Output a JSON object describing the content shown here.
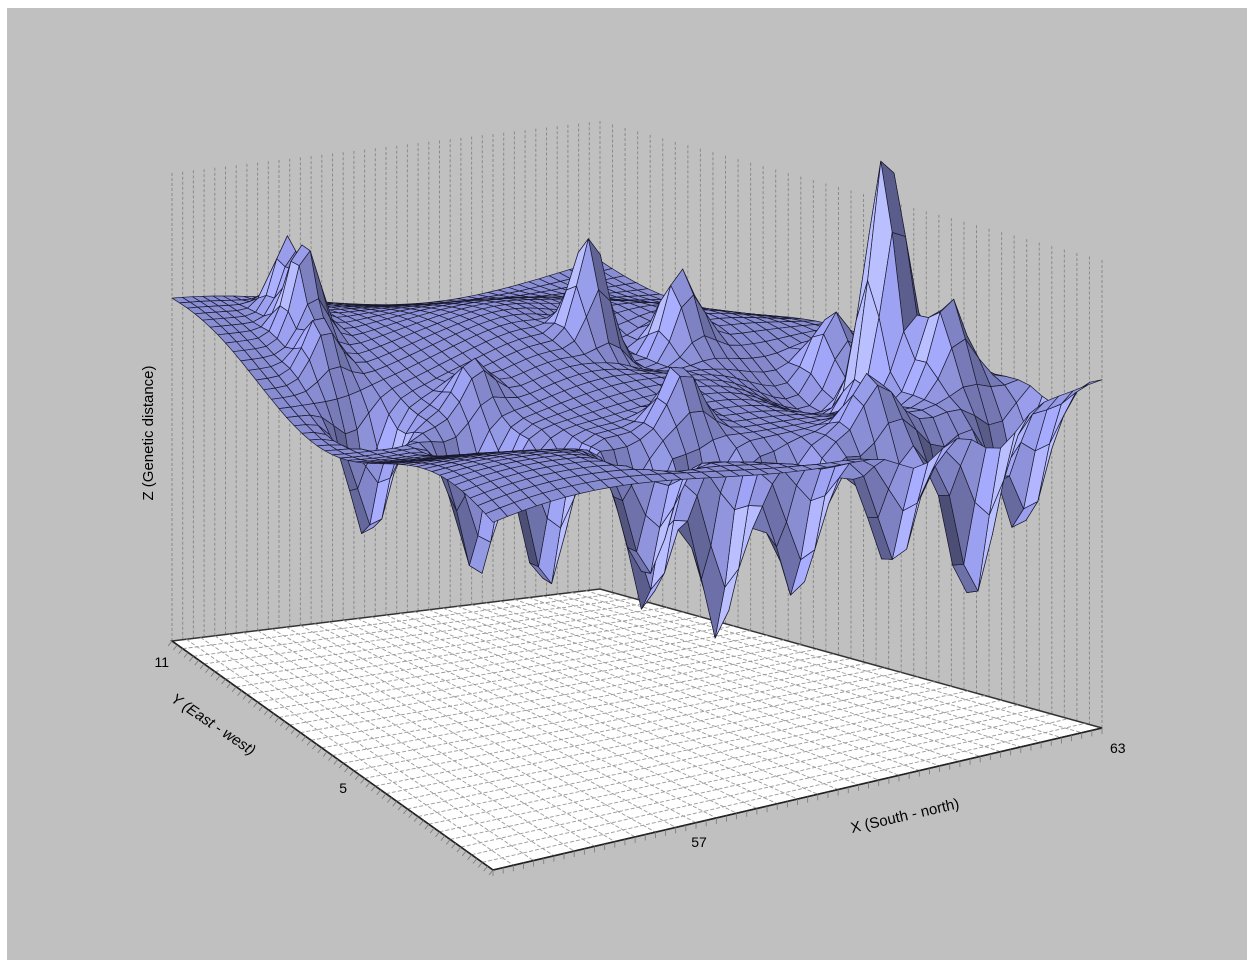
{
  "chart_data": {
    "type": "surface",
    "title": "",
    "xlabel": "X (South - north)",
    "ylabel": "Y (East - west)",
    "zlabel": "Z (Genetic distance)",
    "x_ticks": [
      "57",
      "63"
    ],
    "y_ticks": [
      "11",
      "5"
    ],
    "x_range": [
      53,
      63
    ],
    "y_range": [
      1,
      11
    ],
    "z_range": [
      0,
      1
    ],
    "base_level": 0.55,
    "grid": true,
    "surface_color": "#8a8ed4",
    "peaks": [
      {
        "x": 61.9,
        "y": 4.1,
        "z": 0.97
      },
      {
        "x": 62.2,
        "y": 3.2,
        "z": 0.71
      },
      {
        "x": 62.0,
        "y": 5.3,
        "z": 0.66
      },
      {
        "x": 60.3,
        "y": 6.7,
        "z": 0.68
      },
      {
        "x": 58.8,
        "y": 7.0,
        "z": 0.75
      },
      {
        "x": 54.6,
        "y": 9.2,
        "z": 0.71
      },
      {
        "x": 54.9,
        "y": 10.0,
        "z": 0.68
      },
      {
        "x": 54.3,
        "y": 8.3,
        "z": 0.64
      },
      {
        "x": 56.0,
        "y": 6.4,
        "z": 0.62
      },
      {
        "x": 58.1,
        "y": 4.0,
        "z": 0.66
      },
      {
        "x": 60.4,
        "y": 2.6,
        "z": 0.64
      },
      {
        "x": 57.4,
        "y": 3.0,
        "z": 0.61
      }
    ],
    "troughs": [
      {
        "x": 57.8,
        "y": 2.7,
        "z": 0.22
      },
      {
        "x": 61.3,
        "y": 1.6,
        "z": 0.23
      },
      {
        "x": 56.9,
        "y": 3.1,
        "z": 0.26
      },
      {
        "x": 55.8,
        "y": 4.2,
        "z": 0.3
      },
      {
        "x": 55.3,
        "y": 5.3,
        "z": 0.32
      },
      {
        "x": 58.8,
        "y": 2.2,
        "z": 0.3
      },
      {
        "x": 60.0,
        "y": 1.6,
        "z": 0.33
      },
      {
        "x": 54.3,
        "y": 6.9,
        "z": 0.35
      },
      {
        "x": 56.3,
        "y": 2.3,
        "z": 0.34
      },
      {
        "x": 62.4,
        "y": 1.9,
        "z": 0.31
      }
    ],
    "pits": [
      {
        "x": 59.5,
        "y": 6.9,
        "z": 0.47
      },
      {
        "x": 61.3,
        "y": 5.0,
        "z": 0.47
      }
    ]
  }
}
